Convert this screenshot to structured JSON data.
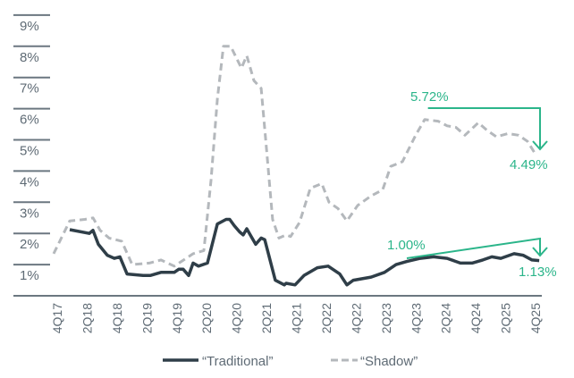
{
  "chart_data": {
    "type": "line",
    "title": "",
    "xlabel": "",
    "ylabel": "",
    "ylim": [
      0,
      9
    ],
    "y_ticks": [
      "1%",
      "2%",
      "3%",
      "4%",
      "5%",
      "6%",
      "7%",
      "8%",
      "9%"
    ],
    "x_ticks": [
      "4Q17",
      "2Q18",
      "4Q18",
      "2Q19",
      "4Q19",
      "2Q20",
      "4Q20",
      "2Q21",
      "4Q21",
      "2Q22",
      "4Q22",
      "2Q23",
      "4Q23",
      "2Q24",
      "4Q24",
      "2Q25",
      "4Q25"
    ],
    "x_unit": "quarters since 4Q17",
    "legend": {
      "placement": "bottom",
      "entries": [
        "“Traditional”",
        "“Shadow”"
      ]
    },
    "series": [
      {
        "name": "“Traditional”",
        "style": "solid",
        "color": "#2f3e48",
        "points": [
          [
            0.84,
            2.12
          ],
          [
            2.15,
            2.0
          ],
          [
            2.39,
            2.1
          ],
          [
            2.75,
            1.65
          ],
          [
            3.35,
            1.3
          ],
          [
            3.83,
            1.2
          ],
          [
            4.19,
            1.25
          ],
          [
            4.67,
            0.7
          ],
          [
            5.74,
            0.65
          ],
          [
            6.22,
            0.65
          ],
          [
            6.94,
            0.75
          ],
          [
            7.83,
            0.75
          ],
          [
            8.13,
            0.85
          ],
          [
            8.43,
            0.85
          ],
          [
            8.79,
            0.65
          ],
          [
            9.09,
            1.05
          ],
          [
            9.45,
            0.95
          ],
          [
            10.05,
            1.05
          ],
          [
            10.71,
            2.3
          ],
          [
            11.3,
            2.45
          ],
          [
            11.54,
            2.45
          ],
          [
            11.84,
            2.25
          ],
          [
            12.2,
            2.05
          ],
          [
            12.44,
            1.95
          ],
          [
            12.68,
            2.15
          ],
          [
            12.98,
            1.9
          ],
          [
            13.28,
            1.65
          ],
          [
            13.64,
            1.85
          ],
          [
            13.88,
            1.8
          ],
          [
            14.59,
            0.5
          ],
          [
            15.19,
            0.35
          ],
          [
            15.31,
            0.4
          ],
          [
            15.91,
            0.35
          ],
          [
            16.51,
            0.65
          ],
          [
            17.4,
            0.9
          ],
          [
            18.12,
            0.95
          ],
          [
            18.9,
            0.7
          ],
          [
            19.38,
            0.35
          ],
          [
            19.8,
            0.5
          ],
          [
            20.99,
            0.6
          ],
          [
            21.89,
            0.75
          ],
          [
            22.67,
            1.0
          ],
          [
            23.39,
            1.1
          ],
          [
            24.28,
            1.2
          ],
          [
            25.18,
            1.25
          ],
          [
            26.08,
            1.2
          ],
          [
            26.97,
            1.05
          ],
          [
            27.75,
            1.05
          ],
          [
            28.47,
            1.15
          ],
          [
            29.07,
            1.25
          ],
          [
            29.67,
            1.2
          ],
          [
            30.56,
            1.35
          ],
          [
            31.16,
            1.3
          ],
          [
            31.76,
            1.15
          ],
          [
            32.24,
            1.13
          ]
        ]
      },
      {
        "name": "“Shadow”",
        "style": "dashed",
        "color": "#b4b8bc",
        "points": [
          [
            -0.24,
            1.35
          ],
          [
            0.84,
            2.4
          ],
          [
            1.85,
            2.45
          ],
          [
            2.39,
            2.5
          ],
          [
            2.87,
            2.1
          ],
          [
            3.47,
            1.85
          ],
          [
            4.31,
            1.75
          ],
          [
            5.02,
            1.0
          ],
          [
            6.16,
            1.05
          ],
          [
            6.94,
            1.15
          ],
          [
            7.83,
            0.95
          ],
          [
            9.09,
            1.35
          ],
          [
            9.81,
            1.45
          ],
          [
            10.29,
            3.7
          ],
          [
            10.71,
            6.3
          ],
          [
            11.12,
            8.0
          ],
          [
            11.6,
            8.0
          ],
          [
            12.32,
            7.3
          ],
          [
            12.68,
            7.7
          ],
          [
            13.16,
            6.9
          ],
          [
            13.64,
            6.65
          ],
          [
            14.0,
            4.7
          ],
          [
            14.41,
            2.45
          ],
          [
            14.83,
            1.85
          ],
          [
            15.31,
            1.95
          ],
          [
            15.61,
            1.9
          ],
          [
            16.21,
            2.35
          ],
          [
            16.93,
            3.45
          ],
          [
            17.7,
            3.6
          ],
          [
            18.18,
            3.0
          ],
          [
            18.78,
            2.8
          ],
          [
            19.38,
            2.4
          ],
          [
            20.1,
            2.9
          ],
          [
            20.99,
            3.2
          ],
          [
            21.77,
            3.4
          ],
          [
            22.31,
            4.15
          ],
          [
            23.09,
            4.3
          ],
          [
            23.98,
            5.15
          ],
          [
            24.58,
            5.65
          ],
          [
            25.48,
            5.6
          ],
          [
            26.08,
            5.45
          ],
          [
            26.67,
            5.4
          ],
          [
            27.27,
            5.15
          ],
          [
            28.17,
            5.55
          ],
          [
            28.77,
            5.3
          ],
          [
            29.37,
            5.1
          ],
          [
            30.14,
            5.2
          ],
          [
            30.86,
            5.15
          ],
          [
            31.46,
            4.95
          ],
          [
            32.06,
            4.49
          ]
        ]
      }
    ],
    "annotations": [
      {
        "series": "“Shadow”",
        "from_label": "5.72%",
        "to_label": "4.49%",
        "from": [
          24.8,
          5.72
        ],
        "to": [
          32.2,
          4.49
        ]
      },
      {
        "series": "“Traditional”",
        "from_label": "1.00%",
        "to_label": "1.13%",
        "from": [
          23.4,
          1.0
        ],
        "to": [
          32.2,
          1.13
        ]
      }
    ],
    "annotation_color": "#2bb58a",
    "grid": false
  }
}
